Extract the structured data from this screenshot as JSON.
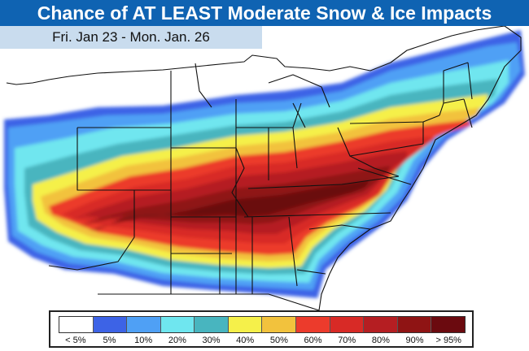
{
  "title": "Chance of AT LEAST Moderate Snow & Ice Impacts",
  "date_range": "Fri. Jan 23 - Mon. Jan. 26",
  "legend": {
    "labels": [
      "< 5%",
      "5%",
      "10%",
      "20%",
      "30%",
      "40%",
      "50%",
      "60%",
      "70%",
      "80%",
      "90%",
      "> 95%"
    ],
    "colors": [
      "#ffffff",
      "#3d63e6",
      "#4fa0f5",
      "#6fe6ef",
      "#48b5bf",
      "#f5f04a",
      "#f2c23d",
      "#ec3b2c",
      "#d82a26",
      "#b51e22",
      "#8f1414",
      "#6b0a0f"
    ]
  },
  "map": {
    "background_color": "#ffffff",
    "water_color": "#ffffff",
    "border_color": "#111111"
  }
}
